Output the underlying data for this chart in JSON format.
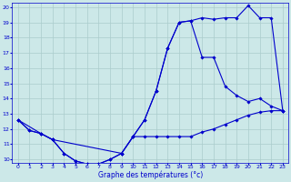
{
  "xlabel": "Graphe des températures (°c)",
  "bg_color": "#cce8e8",
  "grid_color": "#aacccc",
  "line_color": "#0000cc",
  "xlim": [
    0,
    23
  ],
  "ylim": [
    10,
    20
  ],
  "xticks": [
    0,
    1,
    2,
    3,
    4,
    5,
    6,
    7,
    8,
    9,
    10,
    11,
    12,
    13,
    14,
    15,
    16,
    17,
    18,
    19,
    20,
    21,
    22,
    23
  ],
  "yticks": [
    10,
    11,
    12,
    13,
    14,
    15,
    16,
    17,
    18,
    19,
    20
  ],
  "line1_x": [
    0,
    1,
    2,
    3,
    4,
    5,
    6,
    7,
    8,
    9,
    10,
    11,
    12,
    13,
    14,
    15,
    16,
    17,
    18,
    19,
    20,
    21,
    22,
    23
  ],
  "line1_y": [
    12.6,
    11.9,
    11.7,
    11.3,
    10.4,
    9.9,
    9.7,
    9.7,
    10.0,
    10.4,
    11.5,
    12.6,
    14.5,
    17.3,
    19.0,
    19.1,
    19.3,
    19.2,
    19.3,
    19.3,
    20.1,
    19.3,
    19.3,
    13.2
  ],
  "line2_x": [
    0,
    1,
    2,
    3,
    4,
    5,
    6,
    7,
    8,
    9,
    10,
    11,
    12,
    13,
    14,
    15,
    16,
    17,
    18,
    19,
    20,
    21,
    22,
    23
  ],
  "line2_y": [
    12.6,
    11.9,
    11.7,
    11.3,
    10.4,
    9.9,
    9.7,
    9.7,
    10.0,
    10.4,
    11.5,
    11.5,
    11.5,
    11.5,
    11.5,
    11.5,
    11.8,
    12.0,
    12.3,
    12.6,
    12.9,
    13.1,
    13.2,
    13.2
  ],
  "line3_x": [
    0,
    2,
    3,
    9,
    10,
    11,
    12,
    13,
    14,
    15,
    16,
    17,
    18,
    19,
    20,
    21,
    22,
    23
  ],
  "line3_y": [
    12.6,
    11.7,
    11.3,
    10.4,
    11.5,
    12.6,
    14.5,
    17.3,
    19.0,
    19.1,
    16.7,
    16.7,
    14.8,
    14.2,
    13.8,
    14.0,
    13.5,
    13.2
  ]
}
